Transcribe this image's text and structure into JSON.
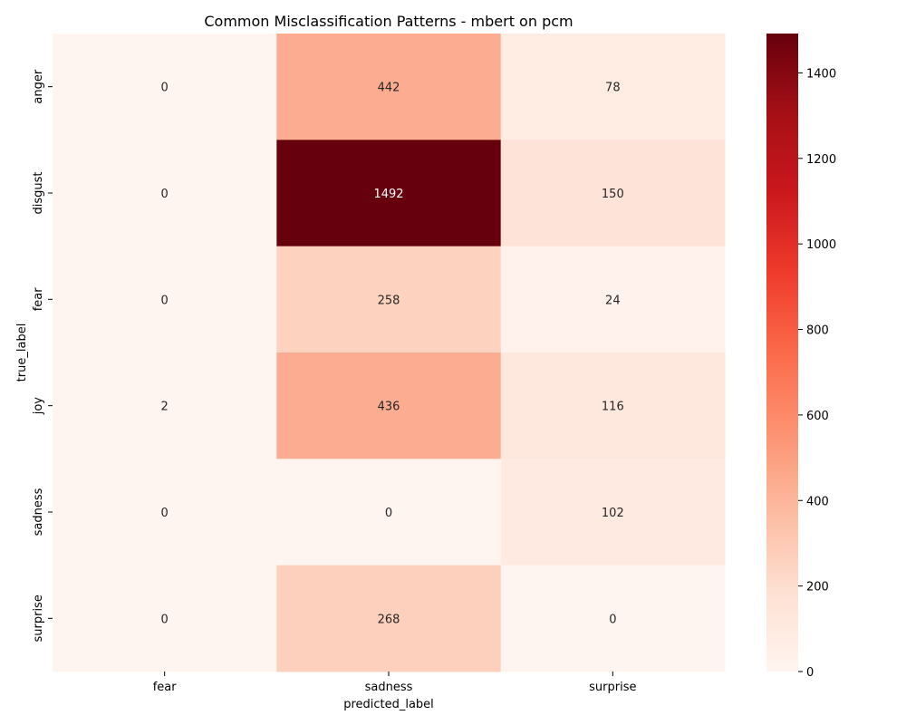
{
  "chart_data": {
    "type": "heatmap",
    "title": "Common Misclassification Patterns - mbert on pcm",
    "xlabel": "predicted_label",
    "ylabel": "true_label",
    "x_categories": [
      "fear",
      "sadness",
      "surprise"
    ],
    "y_categories": [
      "anger",
      "disgust",
      "fear",
      "joy",
      "sadness",
      "surprise"
    ],
    "values": [
      [
        0,
        442,
        78
      ],
      [
        0,
        1492,
        150
      ],
      [
        0,
        258,
        24
      ],
      [
        2,
        436,
        116
      ],
      [
        0,
        0,
        102
      ],
      [
        0,
        268,
        0
      ]
    ],
    "colormap": "Reds",
    "vmin": 0,
    "vmax": 1492,
    "colorbar_ticks": [
      0,
      200,
      400,
      600,
      800,
      1000,
      1200,
      1400
    ]
  }
}
